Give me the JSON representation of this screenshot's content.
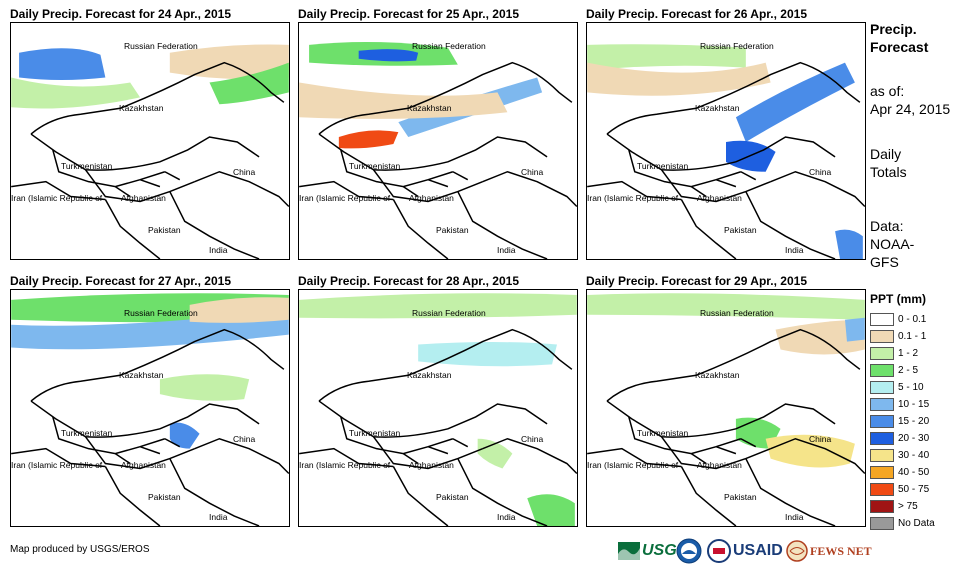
{
  "panels": [
    {
      "title": "Daily Precip. Forecast for 24 Apr., 2015"
    },
    {
      "title": "Daily Precip. Forecast for 25 Apr., 2015"
    },
    {
      "title": "Daily Precip. Forecast for 26 Apr., 2015"
    },
    {
      "title": "Daily Precip. Forecast for 27 Apr., 2015"
    },
    {
      "title": "Daily Precip. Forecast for 28 Apr., 2015"
    },
    {
      "title": "Daily Precip. Forecast for 29 Apr., 2015"
    }
  ],
  "countries": {
    "russia": "Russian Federation",
    "kazakhstan": "Kazakhstan",
    "turkmenistan": "Turkmenistan",
    "iran": "Iran (Islamic Republic of",
    "afghanistan": "Afghanistan",
    "pakistan": "Pakistan",
    "china": "China",
    "india": "India"
  },
  "sidebar": {
    "heading_line1": "Precip.",
    "heading_line2": "Forecast",
    "asof_line1": "as of:",
    "asof_line2": "Apr 24, 2015",
    "totals_line1": "Daily",
    "totals_line2": "Totals",
    "data_line1": "Data:",
    "data_line2": "NOAA-",
    "data_line3": "GFS"
  },
  "legend": {
    "title": "PPT (mm)",
    "items": [
      {
        "label": "0 - 0.1",
        "color": "#ffffff"
      },
      {
        "label": "0.1 - 1",
        "color": "#f0d9b5"
      },
      {
        "label": "1 - 2",
        "color": "#c3f0a8"
      },
      {
        "label": "2 - 5",
        "color": "#6ee06b"
      },
      {
        "label": "5 - 10",
        "color": "#b4eef0"
      },
      {
        "label": "10 - 15",
        "color": "#7eb8ee"
      },
      {
        "label": "15 - 20",
        "color": "#4a8ce8"
      },
      {
        "label": "20 - 30",
        "color": "#1e5fe0"
      },
      {
        "label": "30 - 40",
        "color": "#f5e48a"
      },
      {
        "label": "40 - 50",
        "color": "#f5a623"
      },
      {
        "label": "50 - 75",
        "color": "#f04a14"
      },
      {
        "label": "> 75",
        "color": "#a01414"
      },
      {
        "label": "No Data",
        "color": "#999999"
      }
    ]
  },
  "footer": {
    "credit": "Map produced by USGS/EROS",
    "logos": {
      "usgs": "USGS",
      "usaid": "USAID",
      "fewsnet": "FEWS NET"
    }
  }
}
